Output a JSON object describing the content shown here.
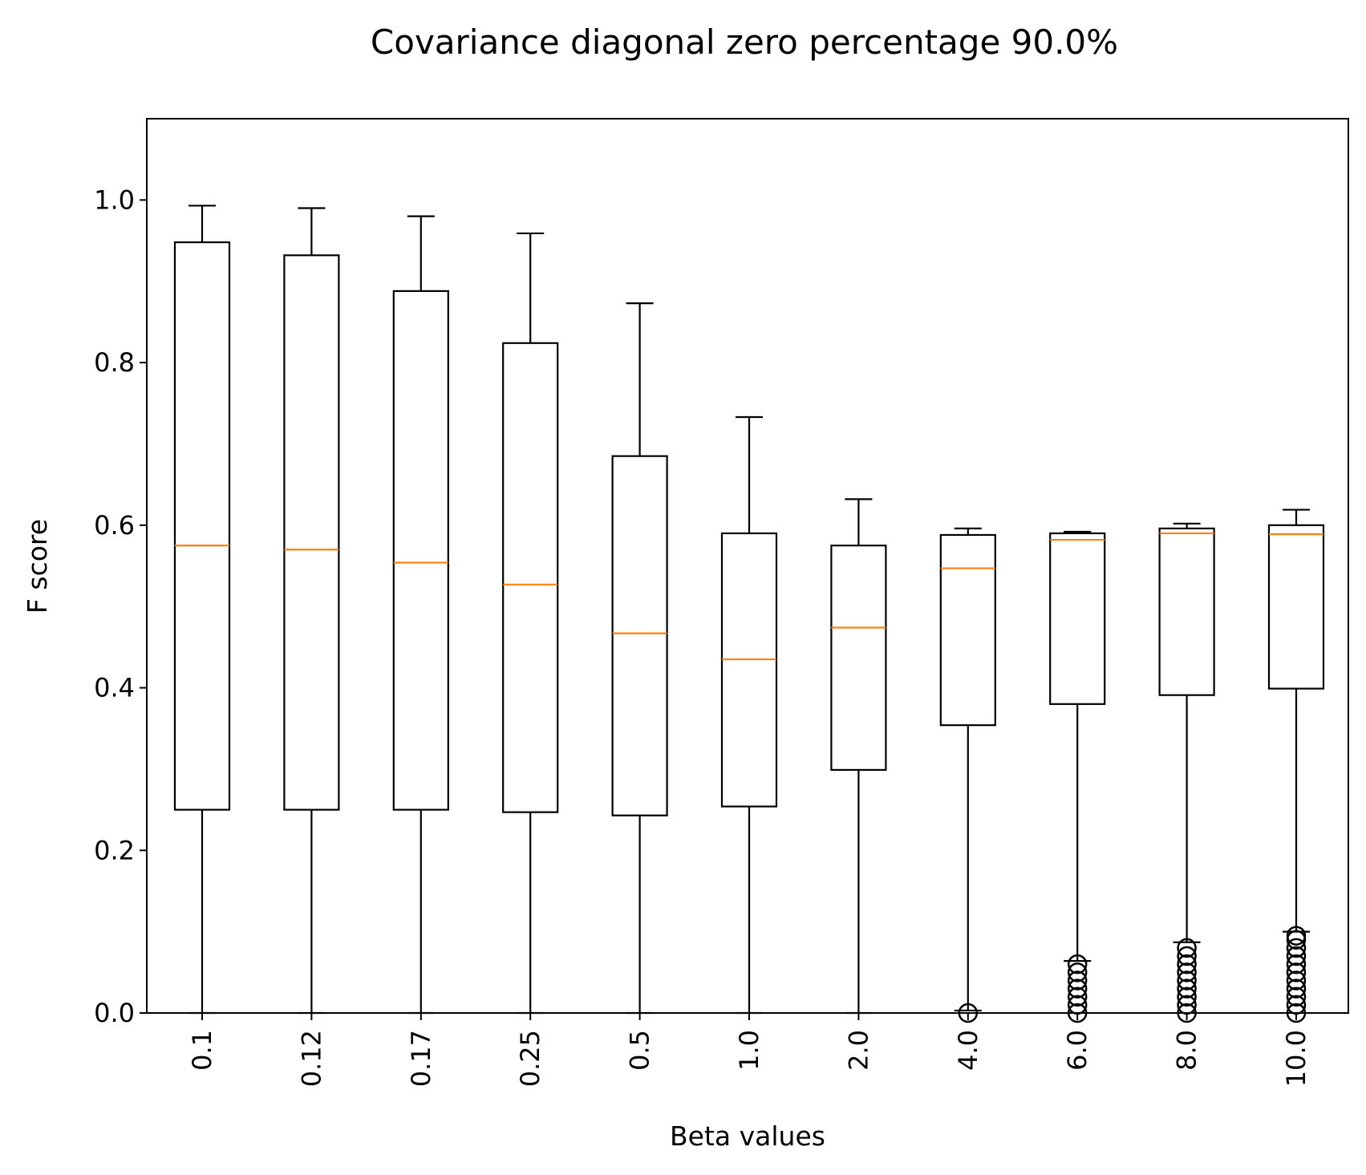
{
  "chart_data": {
    "type": "box",
    "title": "Covariance diagonal zero percentage 90.0%",
    "xlabel": "Beta values",
    "ylabel": "F score",
    "ylim": [
      0,
      1.1
    ],
    "yticks": [
      "0.0",
      "0.2",
      "0.4",
      "0.6",
      "0.8",
      "1.0"
    ],
    "grid": false,
    "colors": {
      "box": "#000000",
      "median": "#ff7f0e",
      "background": "#ffffff"
    },
    "categories": [
      "0.1",
      "0.12",
      "0.17",
      "0.25",
      "0.5",
      "1.0",
      "2.0",
      "4.0",
      "6.0",
      "8.0",
      "10.0"
    ],
    "boxes": [
      {
        "label": "0.1",
        "whisker_low": 0.0,
        "q1": 0.25,
        "median": 0.575,
        "q3": 0.948,
        "whisker_high": 0.993,
        "outliers": []
      },
      {
        "label": "0.12",
        "whisker_low": 0.0,
        "q1": 0.25,
        "median": 0.57,
        "q3": 0.932,
        "whisker_high": 0.99,
        "outliers": []
      },
      {
        "label": "0.17",
        "whisker_low": 0.0,
        "q1": 0.25,
        "median": 0.554,
        "q3": 0.888,
        "whisker_high": 0.98,
        "outliers": []
      },
      {
        "label": "0.25",
        "whisker_low": 0.0,
        "q1": 0.247,
        "median": 0.527,
        "q3": 0.824,
        "whisker_high": 0.959,
        "outliers": []
      },
      {
        "label": "0.5",
        "whisker_low": 0.0,
        "q1": 0.243,
        "median": 0.467,
        "q3": 0.685,
        "whisker_high": 0.873,
        "outliers": []
      },
      {
        "label": "1.0",
        "whisker_low": 0.0,
        "q1": 0.254,
        "median": 0.435,
        "q3": 0.59,
        "whisker_high": 0.733,
        "outliers": []
      },
      {
        "label": "2.0",
        "whisker_low": 0.0,
        "q1": 0.299,
        "median": 0.474,
        "q3": 0.575,
        "whisker_high": 0.632,
        "outliers": []
      },
      {
        "label": "4.0",
        "whisker_low": 0.003,
        "q1": 0.354,
        "median": 0.547,
        "q3": 0.588,
        "whisker_high": 0.596,
        "outliers": [
          0.0
        ]
      },
      {
        "label": "6.0",
        "whisker_low": 0.064,
        "q1": 0.38,
        "median": 0.582,
        "q3": 0.59,
        "whisker_high": 0.592,
        "outliers": [
          0.0,
          0.01,
          0.02,
          0.03,
          0.04,
          0.05,
          0.06
        ]
      },
      {
        "label": "8.0",
        "whisker_low": 0.087,
        "q1": 0.391,
        "median": 0.59,
        "q3": 0.596,
        "whisker_high": 0.602,
        "outliers": [
          0.0,
          0.01,
          0.02,
          0.03,
          0.04,
          0.05,
          0.06,
          0.07,
          0.08
        ]
      },
      {
        "label": "10.0",
        "whisker_low": 0.1,
        "q1": 0.399,
        "median": 0.589,
        "q3": 0.6,
        "whisker_high": 0.619,
        "outliers": [
          0.0,
          0.01,
          0.02,
          0.03,
          0.04,
          0.05,
          0.06,
          0.07,
          0.08,
          0.09,
          0.095
        ]
      }
    ]
  }
}
